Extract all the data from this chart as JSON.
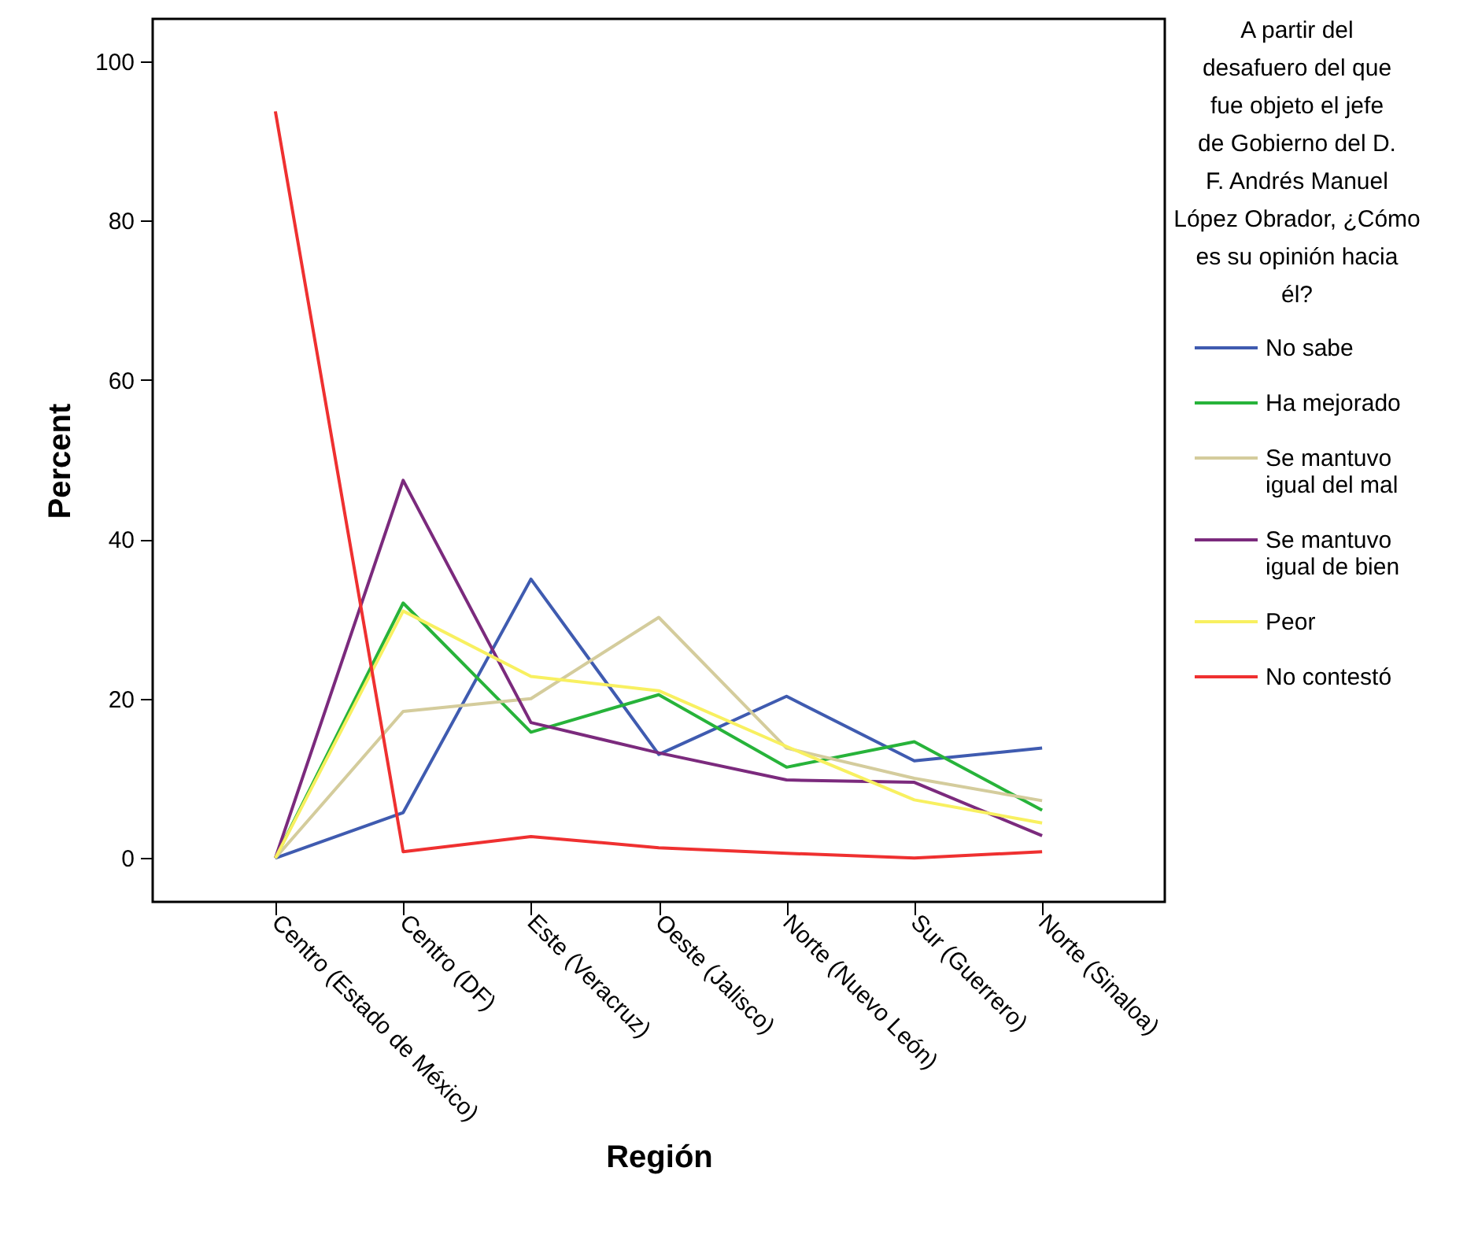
{
  "chart_data": {
    "type": "line",
    "xlabel": "Región",
    "ylabel": "Percent",
    "legend_title": "A partir del desafuero del que fue objeto el jefe de Gobierno del D. F. Andrés Manuel López Obrador, ¿Cómo es su opinión hacia él?",
    "legend": "right",
    "grid": false,
    "categories": [
      "Centro (Estado de México)",
      "Centro (DF)",
      "Este (Veracruz)",
      "Oeste (Jalisco)",
      "Norte (Nuevo León)",
      "Sur (Guerrero)",
      "Norte (Sinaloa)"
    ],
    "ylim": [
      -5.5,
      105.3
    ],
    "yticks": [
      0,
      20,
      40,
      60,
      80,
      100
    ],
    "series": [
      {
        "name": "No sabe",
        "color": "#3f5bb0",
        "values": [
          0,
          5.7,
          35.0,
          13.0,
          20.3,
          12.2,
          13.8
        ]
      },
      {
        "name": "Ha mejorado",
        "color": "#27b33a",
        "values": [
          0,
          32.0,
          15.8,
          20.5,
          11.4,
          14.6,
          6.0
        ]
      },
      {
        "name": "Se mantuvo igual del mal",
        "color": "#d4cc9c",
        "values": [
          0,
          18.4,
          20.0,
          30.2,
          13.8,
          10.0,
          7.2
        ]
      },
      {
        "name": "Se mantuvo igual de bien",
        "color": "#7b2a7d",
        "values": [
          0,
          47.4,
          17.0,
          13.2,
          9.8,
          9.5,
          2.8
        ]
      },
      {
        "name": "Peor",
        "color": "#f8f060",
        "values": [
          0,
          31.0,
          22.8,
          21.0,
          14.0,
          7.3,
          4.4
        ]
      },
      {
        "name": "No contestó",
        "color": "#ef3030",
        "values": [
          93.7,
          0.8,
          2.7,
          1.3,
          0.6,
          0,
          0.8
        ]
      }
    ]
  }
}
